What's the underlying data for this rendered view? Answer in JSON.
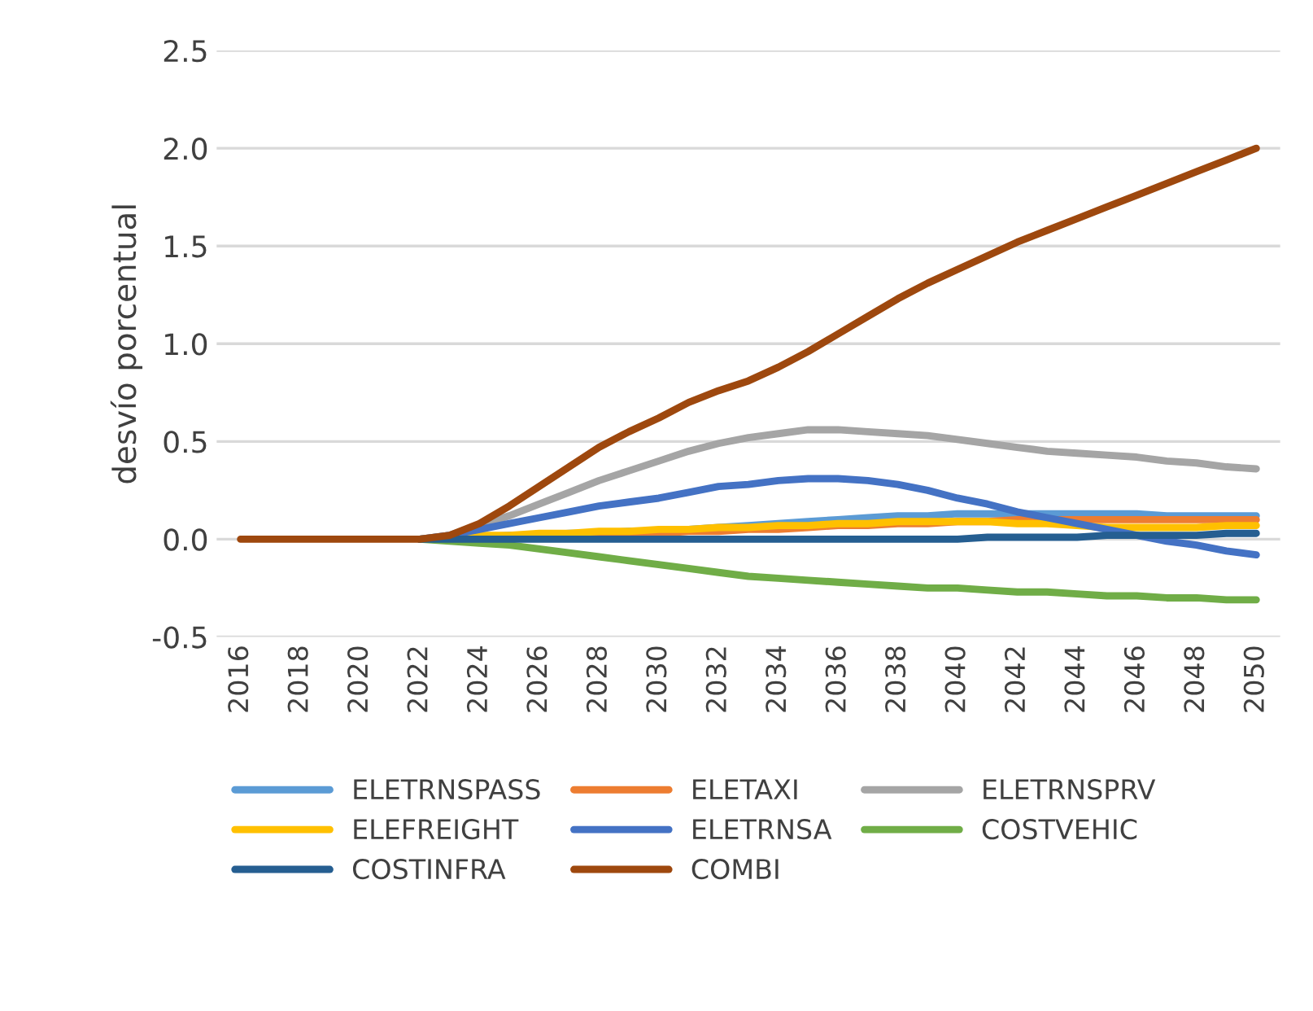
{
  "chart_data": {
    "type": "line",
    "ylabel": "desvío porcentual",
    "categories": [
      "2016",
      null,
      "2018",
      null,
      "2020",
      null,
      "2022",
      null,
      "2024",
      null,
      "2026",
      null,
      "2028",
      null,
      "2030",
      null,
      "2032",
      null,
      "2034",
      null,
      "2036",
      null,
      "2038",
      null,
      "2040",
      null,
      "2042",
      null,
      "2044",
      null,
      "2046",
      null,
      "2048",
      null,
      "2050"
    ],
    "ylim": [
      -0.5,
      2.5
    ],
    "yticks": [
      {
        "value": -0.5,
        "label": "-0.5"
      },
      {
        "value": 0,
        "label": "0.0"
      },
      {
        "value": 0.5,
        "label": "0.5"
      },
      {
        "value": 1,
        "label": "1.0"
      },
      {
        "value": 1.5,
        "label": "1.5"
      },
      {
        "value": 2,
        "label": "2.0"
      },
      {
        "value": 2.5,
        "label": "2.5"
      }
    ],
    "grid": "y",
    "legend": "bottom",
    "marker": "none",
    "line_style": "solid",
    "series": [
      {
        "name": "ELETRNSPASS",
        "color": "#5b9bd5",
        "values": [
          null,
          null,
          null,
          null,
          null,
          null,
          0,
          0.01,
          0.01,
          0.02,
          0.02,
          0.03,
          0.03,
          0.04,
          0.04,
          0.05,
          0.06,
          0.07,
          0.08,
          0.09,
          0.1,
          0.11,
          0.12,
          0.12,
          0.13,
          0.13,
          0.13,
          0.13,
          0.13,
          0.13,
          0.13,
          0.12,
          0.12,
          0.12,
          0.12
        ]
      },
      {
        "name": "ELETAXI",
        "color": "#ed7d31",
        "values": [
          null,
          null,
          null,
          null,
          null,
          null,
          null,
          null,
          null,
          null,
          0.02,
          0.02,
          0.02,
          0.03,
          0.03,
          0.04,
          0.04,
          0.05,
          0.05,
          0.06,
          0.07,
          0.07,
          0.08,
          0.08,
          0.09,
          0.09,
          0.1,
          0.1,
          0.1,
          0.1,
          0.1,
          0.1,
          0.1,
          0.1,
          0.1
        ]
      },
      {
        "name": "ELETRNSPRV",
        "color": "#a5a5a5",
        "values": [
          null,
          null,
          null,
          null,
          null,
          null,
          0,
          0.02,
          0.07,
          0.12,
          0.18,
          0.24,
          0.3,
          0.35,
          0.4,
          0.45,
          0.49,
          0.52,
          0.54,
          0.56,
          0.56,
          0.55,
          0.54,
          0.53,
          0.51,
          0.49,
          0.47,
          0.45,
          0.44,
          0.43,
          0.42,
          0.4,
          0.39,
          0.37,
          0.36
        ]
      },
      {
        "name": "ELEFREIGHT",
        "color": "#ffc000",
        "values": [
          null,
          null,
          null,
          null,
          null,
          null,
          0,
          0.01,
          0.02,
          0.02,
          0.03,
          0.03,
          0.04,
          0.04,
          0.05,
          0.05,
          0.06,
          0.06,
          0.07,
          0.07,
          0.08,
          0.08,
          0.09,
          0.09,
          0.09,
          0.09,
          0.08,
          0.08,
          0.07,
          0.06,
          0.06,
          0.06,
          0.06,
          0.07,
          0.07
        ]
      },
      {
        "name": "ELETRNSA",
        "color": "#4472c4",
        "values": [
          null,
          null,
          null,
          null,
          null,
          null,
          0,
          0.02,
          0.05,
          0.08,
          0.11,
          0.14,
          0.17,
          0.19,
          0.21,
          0.24,
          0.27,
          0.28,
          0.3,
          0.31,
          0.31,
          0.3,
          0.28,
          0.25,
          0.21,
          0.18,
          0.14,
          0.11,
          0.08,
          0.05,
          0.02,
          -0.01,
          -0.03,
          -0.06,
          -0.08
        ]
      },
      {
        "name": "COSTVEHIC",
        "color": "#70ad47",
        "values": [
          null,
          null,
          null,
          null,
          null,
          null,
          0,
          -0.01,
          -0.02,
          -0.03,
          -0.05,
          -0.07,
          -0.09,
          -0.11,
          -0.13,
          -0.15,
          -0.17,
          -0.19,
          -0.2,
          -0.21,
          -0.22,
          -0.23,
          -0.24,
          -0.25,
          -0.25,
          -0.26,
          -0.27,
          -0.27,
          -0.28,
          -0.29,
          -0.29,
          -0.3,
          -0.3,
          -0.31,
          -0.31
        ]
      },
      {
        "name": "COSTINFRA",
        "color": "#255e91",
        "values": [
          null,
          null,
          null,
          null,
          null,
          null,
          0,
          0,
          0,
          0,
          0,
          0,
          0,
          0,
          0,
          0,
          0,
          0,
          0,
          0,
          0,
          0,
          0,
          0,
          0,
          0.01,
          0.01,
          0.01,
          0.01,
          0.02,
          0.02,
          0.02,
          0.02,
          0.03,
          0.03
        ]
      },
      {
        "name": "COMBI",
        "color": "#9e480e",
        "values": [
          0,
          0,
          0,
          0,
          0,
          0,
          0,
          0.02,
          0.08,
          0.17,
          0.27,
          0.37,
          0.47,
          0.55,
          0.62,
          0.7,
          0.76,
          0.81,
          0.88,
          0.96,
          1.05,
          1.14,
          1.23,
          1.31,
          1.38,
          1.45,
          1.52,
          1.58,
          1.64,
          1.7,
          1.76,
          1.82,
          1.88,
          1.94,
          2.0
        ]
      }
    ]
  }
}
